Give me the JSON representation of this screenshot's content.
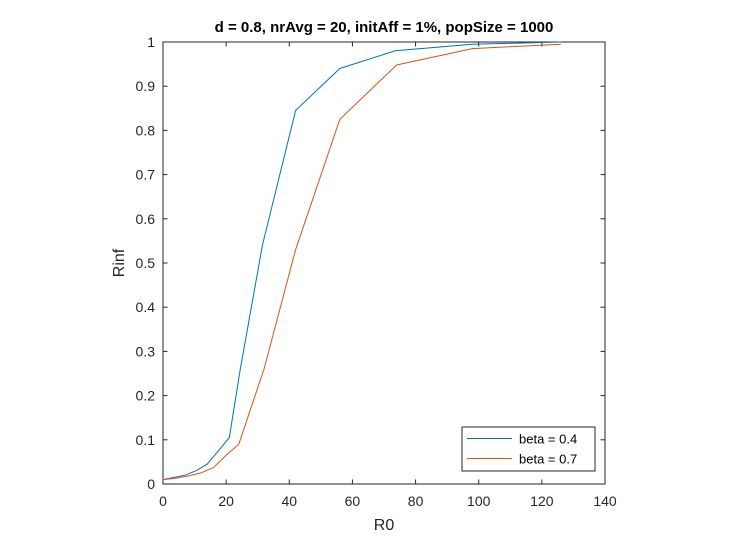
{
  "chart_data": {
    "type": "line",
    "title": "d = 0.8, nrAvg = 20, initAff = 1%, popSize = 1000",
    "xlabel": "R0",
    "ylabel": "Rinf",
    "xlim": [
      0,
      140
    ],
    "ylim": [
      0,
      1
    ],
    "xticks": [
      0,
      20,
      40,
      60,
      80,
      100,
      120,
      140
    ],
    "yticks": [
      0,
      0.1,
      0.2,
      0.3,
      0.4,
      0.5,
      0.6,
      0.7,
      0.8,
      0.9,
      1
    ],
    "xtick_labels": [
      "0",
      "20",
      "40",
      "60",
      "80",
      "100",
      "120",
      "140"
    ],
    "ytick_labels": [
      "0",
      "0.1",
      "0.2",
      "0.3",
      "0.4",
      "0.5",
      "0.6",
      "0.7",
      "0.8",
      "0.9",
      "1"
    ],
    "grid": false,
    "legend_position": "bottom-right",
    "series": [
      {
        "name": "beta = 0.4",
        "color": "#0072BD",
        "x": [
          0,
          3.5,
          7,
          10.5,
          14,
          17.5,
          21,
          24.5,
          31.5,
          42,
          56,
          73.5,
          98,
          126
        ],
        "y": [
          0.01,
          0.015,
          0.02,
          0.03,
          0.045,
          0.075,
          0.105,
          0.26,
          0.54,
          0.845,
          0.94,
          0.98,
          0.995,
          1.0
        ]
      },
      {
        "name": "beta = 0.7",
        "color": "#D95319",
        "x": [
          0,
          4,
          8,
          12,
          16,
          20,
          24,
          32,
          42,
          56,
          74,
          98,
          126
        ],
        "y": [
          0.01,
          0.013,
          0.018,
          0.025,
          0.037,
          0.065,
          0.09,
          0.26,
          0.53,
          0.825,
          0.948,
          0.985,
          0.995
        ]
      }
    ]
  }
}
